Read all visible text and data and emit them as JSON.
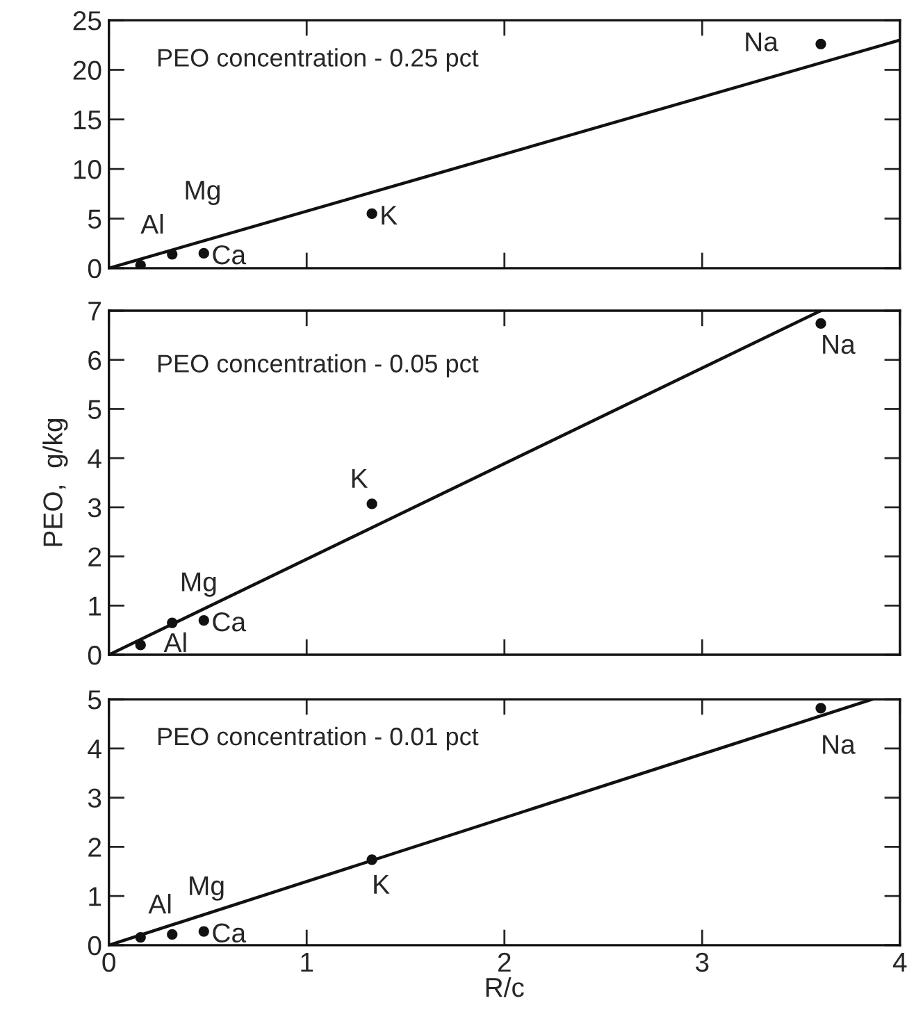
{
  "chart_data": [
    {
      "type": "scatter",
      "x": [
        0.16,
        0.32,
        0.48,
        1.33,
        3.6
      ],
      "xlim": [
        0,
        4
      ],
      "xticks": [
        0,
        1,
        2,
        3,
        4
      ],
      "ylim": [
        0,
        25
      ],
      "yticks": [
        0,
        5,
        10,
        15,
        20,
        25
      ],
      "tick_labels": "y",
      "marker": "circle",
      "grid": false,
      "series": [
        {
          "color": "#111111",
          "values": [
            0.3,
            1.4,
            1.5,
            5.5,
            22.6
          ]
        },
        {
          "type": "line",
          "color": "#111111",
          "marker": "none",
          "x": [
            0,
            4
          ],
          "values": [
            0,
            23
          ]
        }
      ],
      "annotations": [
        "PEO concentration - 0.25 pct",
        {
          "text": "Al",
          "x": 0.16,
          "y": 0.3
        },
        {
          "text": "Mg",
          "x": 0.32,
          "y": 1.4
        },
        {
          "text": "Ca",
          "x": 0.48,
          "y": 1.5
        },
        {
          "text": "K",
          "x": 1.33,
          "y": 5.5
        },
        {
          "text": "Na",
          "x": 3.6,
          "y": 22.6
        }
      ]
    },
    {
      "type": "scatter",
      "x": [
        0.16,
        0.32,
        0.48,
        1.33,
        3.6
      ],
      "xlim": [
        0,
        4
      ],
      "xticks": [
        0,
        1,
        2,
        3,
        4
      ],
      "ylim": [
        0,
        7
      ],
      "yticks": [
        0,
        1,
        2,
        3,
        4,
        5,
        6,
        7
      ],
      "ylabel": "PEO,  g/kg",
      "tick_labels": "y",
      "marker": "circle",
      "grid": false,
      "series": [
        {
          "color": "#111111",
          "values": [
            0.2,
            0.65,
            0.7,
            3.07,
            6.74
          ]
        },
        {
          "type": "line",
          "color": "#111111",
          "marker": "none",
          "x": [
            0,
            3.6
          ],
          "values": [
            0,
            7
          ]
        }
      ],
      "annotations": [
        "PEO concentration - 0.05 pct",
        {
          "text": "Al",
          "x": 0.16,
          "y": 0.2
        },
        {
          "text": "Mg",
          "x": 0.32,
          "y": 0.65
        },
        {
          "text": "Ca",
          "x": 0.48,
          "y": 0.7
        },
        {
          "text": "K",
          "x": 1.33,
          "y": 3.07
        },
        {
          "text": "Na",
          "x": 3.6,
          "y": 6.74
        }
      ]
    },
    {
      "type": "scatter",
      "x": [
        0.16,
        0.32,
        0.48,
        1.33,
        3.6
      ],
      "xlim": [
        0,
        4
      ],
      "xticks": [
        0,
        1,
        2,
        3,
        4
      ],
      "ylim": [
        0,
        5
      ],
      "yticks": [
        0,
        1,
        2,
        3,
        4,
        5
      ],
      "xlabel": "R/c",
      "marker": "circle",
      "grid": false,
      "series": [
        {
          "color": "#111111",
          "values": [
            0.16,
            0.22,
            0.28,
            1.74,
            4.82
          ]
        },
        {
          "type": "line",
          "color": "#111111",
          "marker": "none",
          "x": [
            0,
            3.86
          ],
          "values": [
            0,
            5
          ]
        }
      ],
      "annotations": [
        "PEO concentration - 0.01 pct",
        {
          "text": "Al",
          "x": 0.16,
          "y": 0.16
        },
        {
          "text": "Mg",
          "x": 0.32,
          "y": 0.22
        },
        {
          "text": "Ca",
          "x": 0.48,
          "y": 0.28
        },
        {
          "text": "K",
          "x": 1.33,
          "y": 1.74
        },
        {
          "text": "Na",
          "x": 3.6,
          "y": 4.82
        }
      ]
    }
  ]
}
